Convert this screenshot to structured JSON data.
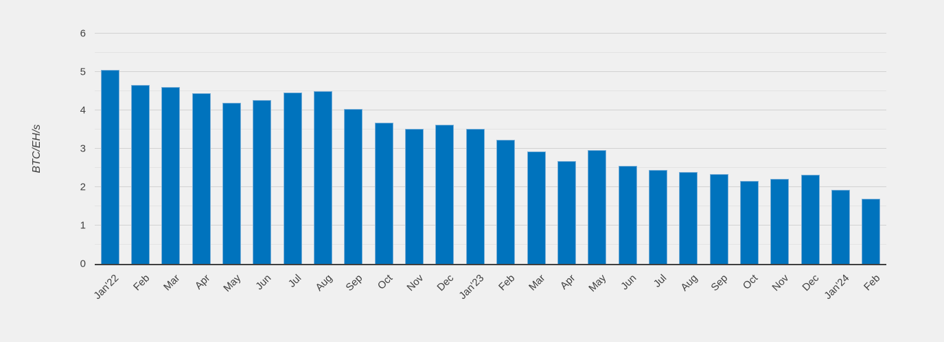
{
  "colors": {
    "background": "#f0f0f0",
    "bar": "#0073bd",
    "bar_border": "#7eb1d8",
    "grid_major": "#d2d2d2",
    "grid_minor": "#e3e3e3",
    "axis": "#3f3f3f",
    "text": "#404040"
  },
  "chart_data": {
    "type": "bar",
    "title": "",
    "xlabel": "",
    "ylabel": "BTC/EH/s",
    "ylim": [
      0,
      6
    ],
    "ytick_step": 1,
    "minor_grid_step": 0.5,
    "grid": true,
    "legend_position": "none",
    "categories": [
      "Jan'22",
      "Feb",
      "Mar",
      "Apr",
      "May",
      "Jun",
      "Jul",
      "Aug",
      "Sep",
      "Oct",
      "Nov",
      "Dec",
      "Jan'23",
      "Feb",
      "Mar",
      "Apr",
      "May",
      "Jun",
      "Jul",
      "Aug",
      "Sep",
      "Oct",
      "Nov",
      "Dec",
      "Jan'24",
      "Feb"
    ],
    "values": [
      5.05,
      4.66,
      4.61,
      4.45,
      4.19,
      4.26,
      4.47,
      4.5,
      4.04,
      3.67,
      3.51,
      3.63,
      3.51,
      3.23,
      2.93,
      2.68,
      2.97,
      2.55,
      2.44,
      2.39,
      2.34,
      2.16,
      2.22,
      2.33,
      1.93,
      1.7
    ],
    "y_tick_labels": [
      "0",
      "1",
      "2",
      "3",
      "4",
      "5",
      "6"
    ]
  }
}
